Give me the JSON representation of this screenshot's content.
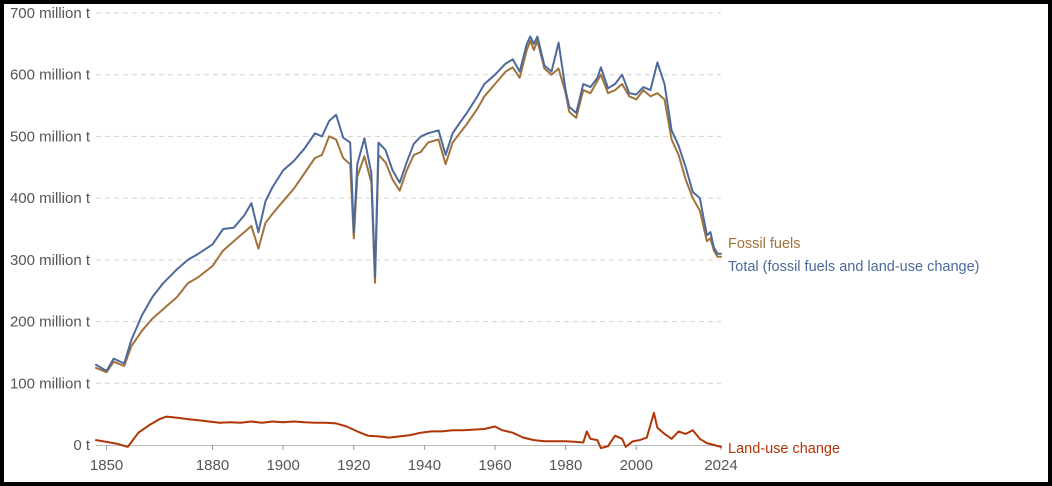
{
  "colors": {
    "fossil": "#a2733a",
    "total": "#4c6a9c",
    "landuse": "#b13507",
    "axis_text": "#555555",
    "grid": "#d4d4d4"
  },
  "chart_data": {
    "type": "line",
    "title": "",
    "xlabel": "",
    "ylabel": "",
    "xlim": [
      1847,
      2024
    ],
    "ylim": [
      0,
      700000000
    ],
    "grid": true,
    "legend": "inline-right-end-labels",
    "y_ticks": [
      {
        "value": 0,
        "label": "0 t"
      },
      {
        "value": 100000000,
        "label": "100 million t"
      },
      {
        "value": 200000000,
        "label": "200 million t"
      },
      {
        "value": 300000000,
        "label": "300 million t"
      },
      {
        "value": 400000000,
        "label": "400 million t"
      },
      {
        "value": 500000000,
        "label": "500 million t"
      },
      {
        "value": 600000000,
        "label": "600 million t"
      },
      {
        "value": 700000000,
        "label": "700 million t"
      }
    ],
    "x_ticks": [
      {
        "value": 1850,
        "label": "1850"
      },
      {
        "value": 1880,
        "label": "1880"
      },
      {
        "value": 1900,
        "label": "1900"
      },
      {
        "value": 1920,
        "label": "1920"
      },
      {
        "value": 1940,
        "label": "1940"
      },
      {
        "value": 1960,
        "label": "1960"
      },
      {
        "value": 1980,
        "label": "1980"
      },
      {
        "value": 2000,
        "label": "2000"
      },
      {
        "value": 2024,
        "label": "2024"
      }
    ],
    "series": [
      {
        "key": "fossil",
        "name": "Fossil fuels",
        "points": [
          [
            1847,
            125
          ],
          [
            1850,
            118
          ],
          [
            1852,
            135
          ],
          [
            1855,
            128
          ],
          [
            1857,
            160
          ],
          [
            1860,
            185
          ],
          [
            1863,
            205
          ],
          [
            1866,
            220
          ],
          [
            1870,
            240
          ],
          [
            1873,
            262
          ],
          [
            1876,
            272
          ],
          [
            1880,
            290
          ],
          [
            1883,
            315
          ],
          [
            1886,
            330
          ],
          [
            1889,
            345
          ],
          [
            1891,
            355
          ],
          [
            1893,
            318
          ],
          [
            1895,
            360
          ],
          [
            1897,
            375
          ],
          [
            1900,
            395
          ],
          [
            1903,
            415
          ],
          [
            1906,
            440
          ],
          [
            1909,
            465
          ],
          [
            1911,
            470
          ],
          [
            1913,
            500
          ],
          [
            1915,
            495
          ],
          [
            1917,
            465
          ],
          [
            1919,
            455
          ],
          [
            1920,
            335
          ],
          [
            1921,
            435
          ],
          [
            1923,
            468
          ],
          [
            1925,
            425
          ],
          [
            1926,
            263
          ],
          [
            1927,
            470
          ],
          [
            1929,
            458
          ],
          [
            1931,
            430
          ],
          [
            1933,
            412
          ],
          [
            1935,
            445
          ],
          [
            1937,
            470
          ],
          [
            1939,
            475
          ],
          [
            1941,
            490
          ],
          [
            1944,
            495
          ],
          [
            1946,
            455
          ],
          [
            1948,
            490
          ],
          [
            1950,
            505
          ],
          [
            1952,
            520
          ],
          [
            1955,
            545
          ],
          [
            1957,
            565
          ],
          [
            1960,
            585
          ],
          [
            1963,
            605
          ],
          [
            1965,
            612
          ],
          [
            1967,
            595
          ],
          [
            1969,
            640
          ],
          [
            1970,
            655
          ],
          [
            1971,
            640
          ],
          [
            1972,
            655
          ],
          [
            1974,
            610
          ],
          [
            1976,
            600
          ],
          [
            1978,
            610
          ],
          [
            1980,
            570
          ],
          [
            1981,
            540
          ],
          [
            1983,
            530
          ],
          [
            1985,
            575
          ],
          [
            1987,
            570
          ],
          [
            1989,
            590
          ],
          [
            1990,
            600
          ],
          [
            1992,
            570
          ],
          [
            1994,
            575
          ],
          [
            1996,
            585
          ],
          [
            1998,
            565
          ],
          [
            2000,
            560
          ],
          [
            2002,
            575
          ],
          [
            2004,
            565
          ],
          [
            2006,
            570
          ],
          [
            2008,
            560
          ],
          [
            2010,
            495
          ],
          [
            2012,
            470
          ],
          [
            2014,
            430
          ],
          [
            2016,
            400
          ],
          [
            2018,
            380
          ],
          [
            2020,
            330
          ],
          [
            2021,
            335
          ],
          [
            2022,
            315
          ],
          [
            2023,
            305
          ],
          [
            2024,
            305
          ]
        ]
      },
      {
        "key": "total",
        "name": "Total (fossil fuels and land-use change)",
        "points": [
          [
            1847,
            130
          ],
          [
            1850,
            120
          ],
          [
            1852,
            140
          ],
          [
            1855,
            132
          ],
          [
            1857,
            170
          ],
          [
            1860,
            210
          ],
          [
            1863,
            240
          ],
          [
            1866,
            262
          ],
          [
            1870,
            285
          ],
          [
            1873,
            300
          ],
          [
            1876,
            310
          ],
          [
            1880,
            325
          ],
          [
            1883,
            350
          ],
          [
            1886,
            352
          ],
          [
            1889,
            372
          ],
          [
            1891,
            392
          ],
          [
            1893,
            345
          ],
          [
            1895,
            395
          ],
          [
            1897,
            418
          ],
          [
            1900,
            445
          ],
          [
            1903,
            460
          ],
          [
            1906,
            480
          ],
          [
            1909,
            505
          ],
          [
            1911,
            500
          ],
          [
            1913,
            525
          ],
          [
            1915,
            535
          ],
          [
            1917,
            498
          ],
          [
            1919,
            490
          ],
          [
            1920,
            345
          ],
          [
            1921,
            455
          ],
          [
            1923,
            497
          ],
          [
            1925,
            440
          ],
          [
            1926,
            272
          ],
          [
            1927,
            490
          ],
          [
            1929,
            478
          ],
          [
            1931,
            445
          ],
          [
            1933,
            425
          ],
          [
            1935,
            458
          ],
          [
            1937,
            488
          ],
          [
            1939,
            500
          ],
          [
            1941,
            505
          ],
          [
            1944,
            510
          ],
          [
            1946,
            470
          ],
          [
            1948,
            505
          ],
          [
            1950,
            522
          ],
          [
            1952,
            538
          ],
          [
            1955,
            565
          ],
          [
            1957,
            585
          ],
          [
            1960,
            600
          ],
          [
            1963,
            618
          ],
          [
            1965,
            625
          ],
          [
            1967,
            605
          ],
          [
            1969,
            650
          ],
          [
            1970,
            662
          ],
          [
            1971,
            650
          ],
          [
            1972,
            662
          ],
          [
            1974,
            615
          ],
          [
            1976,
            605
          ],
          [
            1978,
            652
          ],
          [
            1980,
            575
          ],
          [
            1981,
            548
          ],
          [
            1983,
            538
          ],
          [
            1985,
            585
          ],
          [
            1987,
            580
          ],
          [
            1989,
            595
          ],
          [
            1990,
            612
          ],
          [
            1992,
            578
          ],
          [
            1994,
            585
          ],
          [
            1996,
            600
          ],
          [
            1998,
            570
          ],
          [
            2000,
            568
          ],
          [
            2002,
            580
          ],
          [
            2004,
            575
          ],
          [
            2006,
            620
          ],
          [
            2008,
            585
          ],
          [
            2010,
            510
          ],
          [
            2012,
            485
          ],
          [
            2014,
            450
          ],
          [
            2016,
            410
          ],
          [
            2018,
            400
          ],
          [
            2020,
            340
          ],
          [
            2021,
            345
          ],
          [
            2022,
            320
          ],
          [
            2023,
            310
          ],
          [
            2024,
            310
          ]
        ]
      },
      {
        "key": "landuse",
        "name": "Land-use change",
        "points": [
          [
            1847,
            8
          ],
          [
            1850,
            5
          ],
          [
            1853,
            2
          ],
          [
            1856,
            -3
          ],
          [
            1859,
            20
          ],
          [
            1862,
            32
          ],
          [
            1865,
            42
          ],
          [
            1867,
            46
          ],
          [
            1870,
            44
          ],
          [
            1873,
            42
          ],
          [
            1876,
            40
          ],
          [
            1879,
            38
          ],
          [
            1882,
            36
          ],
          [
            1885,
            37
          ],
          [
            1888,
            36
          ],
          [
            1891,
            38
          ],
          [
            1894,
            36
          ],
          [
            1897,
            38
          ],
          [
            1900,
            37
          ],
          [
            1903,
            38
          ],
          [
            1906,
            37
          ],
          [
            1909,
            36
          ],
          [
            1912,
            36
          ],
          [
            1915,
            35
          ],
          [
            1918,
            30
          ],
          [
            1921,
            22
          ],
          [
            1924,
            15
          ],
          [
            1927,
            14
          ],
          [
            1930,
            12
          ],
          [
            1933,
            14
          ],
          [
            1936,
            16
          ],
          [
            1939,
            20
          ],
          [
            1942,
            22
          ],
          [
            1945,
            22
          ],
          [
            1948,
            24
          ],
          [
            1951,
            24
          ],
          [
            1954,
            25
          ],
          [
            1957,
            26
          ],
          [
            1960,
            30
          ],
          [
            1962,
            24
          ],
          [
            1965,
            20
          ],
          [
            1968,
            12
          ],
          [
            1971,
            8
          ],
          [
            1974,
            6
          ],
          [
            1977,
            6
          ],
          [
            1980,
            6
          ],
          [
            1983,
            5
          ],
          [
            1985,
            4
          ],
          [
            1986,
            22
          ],
          [
            1987,
            10
          ],
          [
            1989,
            8
          ],
          [
            1990,
            -5
          ],
          [
            1992,
            -2
          ],
          [
            1994,
            15
          ],
          [
            1996,
            10
          ],
          [
            1997,
            -3
          ],
          [
            1999,
            6
          ],
          [
            2001,
            8
          ],
          [
            2003,
            12
          ],
          [
            2005,
            52
          ],
          [
            2006,
            28
          ],
          [
            2008,
            18
          ],
          [
            2010,
            10
          ],
          [
            2012,
            22
          ],
          [
            2014,
            18
          ],
          [
            2016,
            24
          ],
          [
            2018,
            10
          ],
          [
            2020,
            3
          ],
          [
            2022,
            0
          ],
          [
            2024,
            -3
          ]
        ]
      }
    ]
  },
  "labels": {
    "fossil": "Fossil fuels",
    "total": "Total (fossil fuels and land-use change)",
    "landuse": "Land-use change"
  }
}
